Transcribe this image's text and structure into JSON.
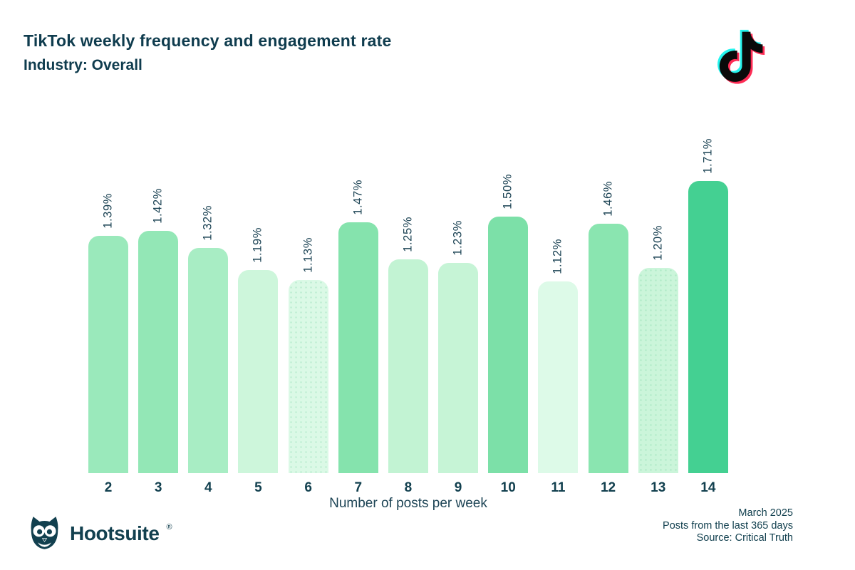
{
  "header": {
    "title": "TikTok weekly frequency and engagement rate",
    "subtitle": "Industry: Overall"
  },
  "chart_data": {
    "type": "bar",
    "title": "TikTok weekly frequency and engagement rate",
    "subtitle": "Industry: Overall",
    "xlabel": "Number of posts per week",
    "categories": [
      "2",
      "3",
      "4",
      "5",
      "6",
      "7",
      "8",
      "9",
      "10",
      "11",
      "12",
      "13",
      "14"
    ],
    "values": [
      1.39,
      1.42,
      1.32,
      1.19,
      1.13,
      1.47,
      1.25,
      1.23,
      1.5,
      1.12,
      1.46,
      1.2,
      1.71
    ],
    "value_labels": [
      "1.39%",
      "1.42%",
      "1.32%",
      "1.19%",
      "1.13%",
      "1.47%",
      "1.25%",
      "1.23%",
      "1.50%",
      "1.12%",
      "1.46%",
      "1.20%",
      "1.71%"
    ],
    "bar_colors": [
      "#9ae9bb",
      "#93e7b6",
      "#a8edc4",
      "#cdf6db",
      "#dbf9e6",
      "#85e3ad",
      "#c2f3d3",
      "#c6f4d6",
      "#7ce0a8",
      "#ddfae8",
      "#8ae5b0",
      "#cbf5da",
      "#44d092"
    ],
    "dotted_bars": [
      false,
      false,
      false,
      false,
      true,
      false,
      false,
      false,
      false,
      false,
      false,
      true,
      false
    ],
    "ylim": [
      0,
      1.71
    ],
    "grid": false,
    "legend": false,
    "value_suffix": "%"
  },
  "logos": {
    "tiktok": "TikTok",
    "hootsuite_wordmark": "Hootsuite",
    "registered_mark": "®"
  },
  "footer": {
    "meta_lines": [
      "March 2025",
      "Posts from the last 365 days",
      "Source: Critical Truth"
    ]
  },
  "colors": {
    "text_dark": "#12404f",
    "label_teal": "#1d4455",
    "accent_max": "#44d092",
    "tiktok_cyan": "#25f4ee",
    "tiktok_pink": "#fe2c55",
    "tiktok_black": "#0a0a0a"
  }
}
